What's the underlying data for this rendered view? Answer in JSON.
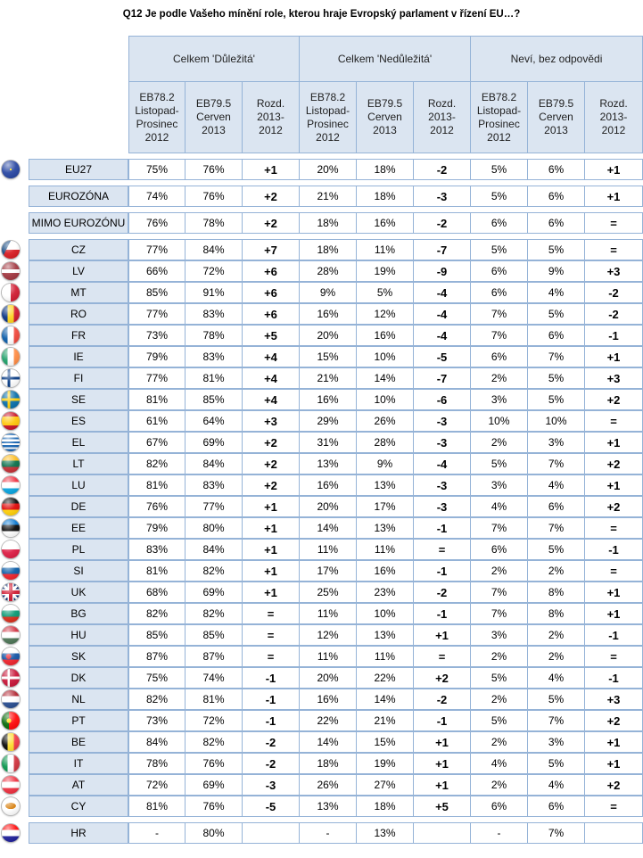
{
  "title": "Q12 Je podle Vašeho mínění role, kterou hraje Evropský parlament v řízení EU…?",
  "groups": [
    "Celkem 'Důležitá'",
    "Celkem 'Nedůležitá'",
    "Neví, bez odpovědi"
  ],
  "subheaders": [
    "EB78.2\nListopad-\nProsinec\n2012",
    "EB79.5\nCerven\n2013",
    "Rozd.\n2013-\n2012",
    "EB78.2\nListopad-\nProsinec\n2012",
    "EB79.5\nCerven\n2013",
    "Rozd.\n2013-\n2012",
    "EB78.2\nListopad-\nProsinec\n2012",
    "EB79.5\nCerven\n2013",
    "Rozd.\n2013-\n2012"
  ],
  "colors": {
    "header_bg": "#dbe5f1",
    "border": "#95b3d7"
  },
  "rows": [
    {
      "name": "EU27",
      "flag": "eu-flag-icon",
      "v": [
        "75%",
        "76%",
        "+1",
        "20%",
        "18%",
        "-2",
        "5%",
        "6%",
        "+1"
      ]
    },
    {
      "name": "EUROZÓNA",
      "flag": "",
      "v": [
        "74%",
        "76%",
        "+2",
        "21%",
        "18%",
        "-3",
        "5%",
        "6%",
        "+1"
      ]
    },
    {
      "name": "MIMO EUROZÓNU",
      "flag": "",
      "v": [
        "76%",
        "78%",
        "+2",
        "18%",
        "16%",
        "-2",
        "6%",
        "6%",
        "="
      ]
    },
    {
      "name": "CZ",
      "flag": "czech-flag-icon",
      "v": [
        "77%",
        "84%",
        "+7",
        "18%",
        "11%",
        "-7",
        "5%",
        "5%",
        "="
      ]
    },
    {
      "name": "LV",
      "flag": "latvia-flag-icon",
      "v": [
        "66%",
        "72%",
        "+6",
        "28%",
        "19%",
        "-9",
        "6%",
        "9%",
        "+3"
      ]
    },
    {
      "name": "MT",
      "flag": "malta-flag-icon",
      "v": [
        "85%",
        "91%",
        "+6",
        "9%",
        "5%",
        "-4",
        "6%",
        "4%",
        "-2"
      ]
    },
    {
      "name": "RO",
      "flag": "romania-flag-icon",
      "v": [
        "77%",
        "83%",
        "+6",
        "16%",
        "12%",
        "-4",
        "7%",
        "5%",
        "-2"
      ]
    },
    {
      "name": "FR",
      "flag": "france-flag-icon",
      "v": [
        "73%",
        "78%",
        "+5",
        "20%",
        "16%",
        "-4",
        "7%",
        "6%",
        "-1"
      ]
    },
    {
      "name": "IE",
      "flag": "ireland-flag-icon",
      "v": [
        "79%",
        "83%",
        "+4",
        "15%",
        "10%",
        "-5",
        "6%",
        "7%",
        "+1"
      ]
    },
    {
      "name": "FI",
      "flag": "finland-flag-icon",
      "v": [
        "77%",
        "81%",
        "+4",
        "21%",
        "14%",
        "-7",
        "2%",
        "5%",
        "+3"
      ]
    },
    {
      "name": "SE",
      "flag": "sweden-flag-icon",
      "v": [
        "81%",
        "85%",
        "+4",
        "16%",
        "10%",
        "-6",
        "3%",
        "5%",
        "+2"
      ]
    },
    {
      "name": "ES",
      "flag": "spain-flag-icon",
      "v": [
        "61%",
        "64%",
        "+3",
        "29%",
        "26%",
        "-3",
        "10%",
        "10%",
        "="
      ]
    },
    {
      "name": "EL",
      "flag": "greece-flag-icon",
      "v": [
        "67%",
        "69%",
        "+2",
        "31%",
        "28%",
        "-3",
        "2%",
        "3%",
        "+1"
      ]
    },
    {
      "name": "LT",
      "flag": "lithuania-flag-icon",
      "v": [
        "82%",
        "84%",
        "+2",
        "13%",
        "9%",
        "-4",
        "5%",
        "7%",
        "+2"
      ]
    },
    {
      "name": "LU",
      "flag": "luxembourg-flag-icon",
      "v": [
        "81%",
        "83%",
        "+2",
        "16%",
        "13%",
        "-3",
        "3%",
        "4%",
        "+1"
      ]
    },
    {
      "name": "DE",
      "flag": "germany-flag-icon",
      "v": [
        "76%",
        "77%",
        "+1",
        "20%",
        "17%",
        "-3",
        "4%",
        "6%",
        "+2"
      ]
    },
    {
      "name": "EE",
      "flag": "estonia-flag-icon",
      "v": [
        "79%",
        "80%",
        "+1",
        "14%",
        "13%",
        "-1",
        "7%",
        "7%",
        "="
      ]
    },
    {
      "name": "PL",
      "flag": "poland-flag-icon",
      "v": [
        "83%",
        "84%",
        "+1",
        "11%",
        "11%",
        "=",
        "6%",
        "5%",
        "-1"
      ]
    },
    {
      "name": "SI",
      "flag": "slovenia-flag-icon",
      "v": [
        "81%",
        "82%",
        "+1",
        "17%",
        "16%",
        "-1",
        "2%",
        "2%",
        "="
      ]
    },
    {
      "name": "UK",
      "flag": "uk-flag-icon",
      "v": [
        "68%",
        "69%",
        "+1",
        "25%",
        "23%",
        "-2",
        "7%",
        "8%",
        "+1"
      ]
    },
    {
      "name": "BG",
      "flag": "bulgaria-flag-icon",
      "v": [
        "82%",
        "82%",
        "=",
        "11%",
        "10%",
        "-1",
        "7%",
        "8%",
        "+1"
      ]
    },
    {
      "name": "HU",
      "flag": "hungary-flag-icon",
      "v": [
        "85%",
        "85%",
        "=",
        "12%",
        "13%",
        "+1",
        "3%",
        "2%",
        "-1"
      ]
    },
    {
      "name": "SK",
      "flag": "slovakia-flag-icon",
      "v": [
        "87%",
        "87%",
        "=",
        "11%",
        "11%",
        "=",
        "2%",
        "2%",
        "="
      ]
    },
    {
      "name": "DK",
      "flag": "denmark-flag-icon",
      "v": [
        "75%",
        "74%",
        "-1",
        "20%",
        "22%",
        "+2",
        "5%",
        "4%",
        "-1"
      ]
    },
    {
      "name": "NL",
      "flag": "netherlands-flag-icon",
      "v": [
        "82%",
        "81%",
        "-1",
        "16%",
        "14%",
        "-2",
        "2%",
        "5%",
        "+3"
      ]
    },
    {
      "name": "PT",
      "flag": "portugal-flag-icon",
      "v": [
        "73%",
        "72%",
        "-1",
        "22%",
        "21%",
        "-1",
        "5%",
        "7%",
        "+2"
      ]
    },
    {
      "name": "BE",
      "flag": "belgium-flag-icon",
      "v": [
        "84%",
        "82%",
        "-2",
        "14%",
        "15%",
        "+1",
        "2%",
        "3%",
        "+1"
      ]
    },
    {
      "name": "IT",
      "flag": "italy-flag-icon",
      "v": [
        "78%",
        "76%",
        "-2",
        "18%",
        "19%",
        "+1",
        "4%",
        "5%",
        "+1"
      ]
    },
    {
      "name": "AT",
      "flag": "austria-flag-icon",
      "v": [
        "72%",
        "69%",
        "-3",
        "26%",
        "27%",
        "+1",
        "2%",
        "4%",
        "+2"
      ]
    },
    {
      "name": "CY",
      "flag": "cyprus-flag-icon",
      "v": [
        "81%",
        "76%",
        "-5",
        "13%",
        "18%",
        "+5",
        "6%",
        "6%",
        "="
      ]
    },
    {
      "name": "HR",
      "flag": "croatia-flag-icon",
      "v": [
        "-",
        "80%",
        "",
        "-",
        "13%",
        "",
        "-",
        "7%",
        ""
      ]
    }
  ]
}
